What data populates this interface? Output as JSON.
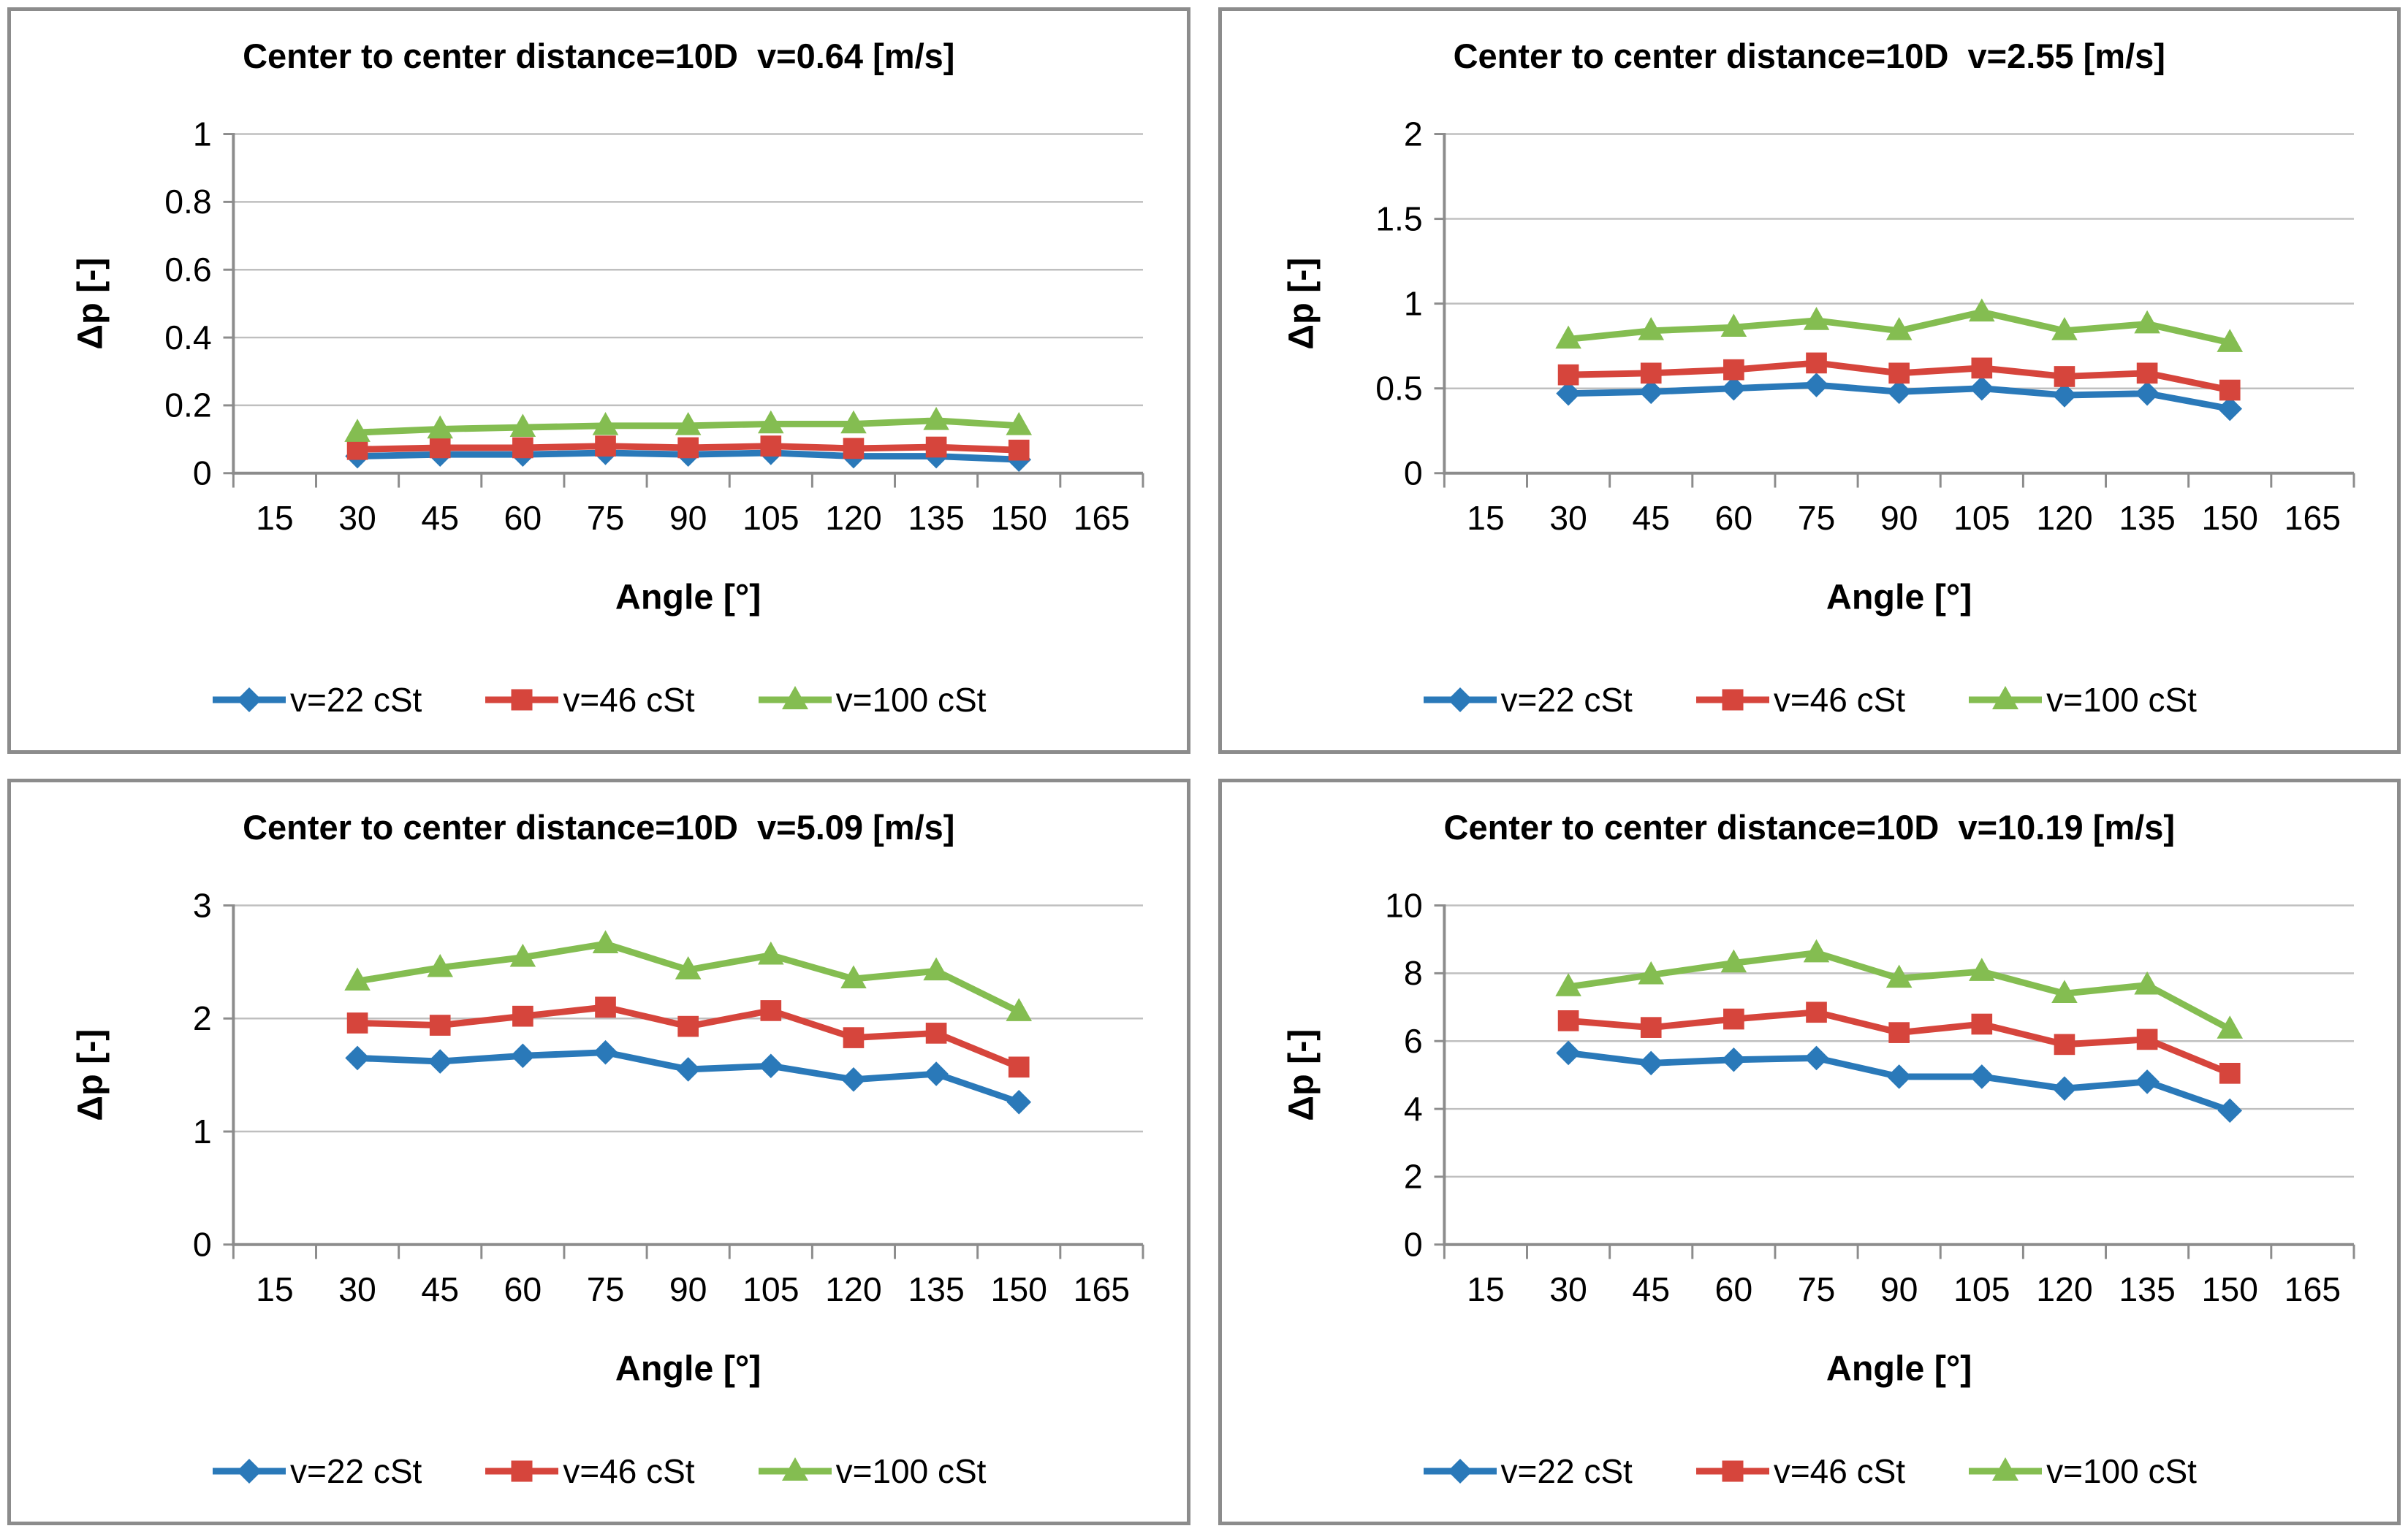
{
  "page": {
    "background": "#FFFFFF"
  },
  "colors": {
    "grid": "#BFBFBF",
    "axis": "#8C8C8C",
    "panel_border": "#8C8C8C",
    "series_blue": "#2A79B9",
    "series_red": "#D6453C",
    "series_green": "#84BD51",
    "text": "#000000"
  },
  "legend": {
    "entries": [
      {
        "label": "v=22 cSt",
        "marker": "diamond",
        "color": "#2A79B9"
      },
      {
        "label": "v=46 cSt",
        "marker": "square",
        "color": "#D6453C"
      },
      {
        "label": "v=100 cSt",
        "marker": "triangle",
        "color": "#84BD51"
      }
    ]
  },
  "chart_data": [
    {
      "type": "line",
      "title": "Center to center distance=10D  v=0.64 [m/s]",
      "xlabel": "Angle [°]",
      "ylabel": "Δp [-]",
      "x_axis": {
        "tick_labels": [
          "15",
          "30",
          "45",
          "60",
          "75",
          "90",
          "105",
          "120",
          "135",
          "150",
          "165"
        ],
        "range": [
          15,
          165
        ]
      },
      "y_axis": {
        "min": 0,
        "max": 1,
        "step": 0.2,
        "tick_labels": [
          "0",
          "0.2",
          "0.4",
          "0.6",
          "0.8",
          "1"
        ]
      },
      "grid": true,
      "legend_position": "bottom",
      "x": [
        30,
        45,
        60,
        75,
        90,
        105,
        120,
        135,
        150
      ],
      "series": [
        {
          "name": "v=22 cSt",
          "marker": "diamond",
          "color": "#2A79B9",
          "values": [
            0.05,
            0.055,
            0.055,
            0.06,
            0.055,
            0.06,
            0.05,
            0.05,
            0.04
          ]
        },
        {
          "name": "v=46 cSt",
          "marker": "square",
          "color": "#D6453C",
          "values": [
            0.07,
            0.075,
            0.075,
            0.08,
            0.075,
            0.08,
            0.073,
            0.077,
            0.068
          ]
        },
        {
          "name": "v=100 cSt",
          "marker": "triangle",
          "color": "#84BD51",
          "values": [
            0.12,
            0.13,
            0.135,
            0.14,
            0.14,
            0.145,
            0.145,
            0.155,
            0.14
          ]
        }
      ]
    },
    {
      "type": "line",
      "title": "Center to center distance=10D  v=2.55 [m/s]",
      "xlabel": "Angle [°]",
      "ylabel": "Δp [-]",
      "x_axis": {
        "tick_labels": [
          "15",
          "30",
          "45",
          "60",
          "75",
          "90",
          "105",
          "120",
          "135",
          "150",
          "165"
        ],
        "range": [
          15,
          165
        ]
      },
      "y_axis": {
        "min": 0,
        "max": 2,
        "step": 0.5,
        "tick_labels": [
          "0",
          "0.5",
          "1",
          "1.5",
          "2"
        ]
      },
      "grid": true,
      "legend_position": "bottom",
      "x": [
        30,
        45,
        60,
        75,
        90,
        105,
        120,
        135,
        150
      ],
      "series": [
        {
          "name": "v=22 cSt",
          "marker": "diamond",
          "color": "#2A79B9",
          "values": [
            0.47,
            0.48,
            0.5,
            0.52,
            0.48,
            0.5,
            0.46,
            0.47,
            0.38
          ]
        },
        {
          "name": "v=46 cSt",
          "marker": "square",
          "color": "#D6453C",
          "values": [
            0.58,
            0.59,
            0.61,
            0.65,
            0.59,
            0.62,
            0.57,
            0.59,
            0.49
          ]
        },
        {
          "name": "v=100 cSt",
          "marker": "triangle",
          "color": "#84BD51",
          "values": [
            0.79,
            0.84,
            0.86,
            0.9,
            0.84,
            0.95,
            0.84,
            0.88,
            0.77
          ]
        }
      ]
    },
    {
      "type": "line",
      "title": "Center to center distance=10D  v=5.09 [m/s]",
      "xlabel": "Angle [°]",
      "ylabel": "Δp [-]",
      "x_axis": {
        "tick_labels": [
          "15",
          "30",
          "45",
          "60",
          "75",
          "90",
          "105",
          "120",
          "135",
          "150",
          "165"
        ],
        "range": [
          15,
          165
        ]
      },
      "y_axis": {
        "min": 0,
        "max": 3,
        "step": 1,
        "tick_labels": [
          "0",
          "1",
          "2",
          "3"
        ]
      },
      "grid": true,
      "legend_position": "bottom",
      "x": [
        30,
        45,
        60,
        75,
        90,
        105,
        120,
        135,
        150
      ],
      "series": [
        {
          "name": "v=22 cSt",
          "marker": "diamond",
          "color": "#2A79B9",
          "values": [
            1.65,
            1.62,
            1.67,
            1.7,
            1.55,
            1.58,
            1.46,
            1.51,
            1.26
          ]
        },
        {
          "name": "v=46 cSt",
          "marker": "square",
          "color": "#D6453C",
          "values": [
            1.96,
            1.94,
            2.02,
            2.1,
            1.93,
            2.07,
            1.83,
            1.87,
            1.57
          ]
        },
        {
          "name": "v=100 cSt",
          "marker": "triangle",
          "color": "#84BD51",
          "values": [
            2.33,
            2.45,
            2.54,
            2.66,
            2.43,
            2.56,
            2.35,
            2.42,
            2.06
          ]
        }
      ]
    },
    {
      "type": "line",
      "title": "Center to center distance=10D  v=10.19 [m/s]",
      "xlabel": "Angle [°]",
      "ylabel": "Δp [-]",
      "x_axis": {
        "tick_labels": [
          "15",
          "30",
          "45",
          "60",
          "75",
          "90",
          "105",
          "120",
          "135",
          "150",
          "165"
        ],
        "range": [
          15,
          165
        ]
      },
      "y_axis": {
        "min": 0,
        "max": 10,
        "step": 2,
        "tick_labels": [
          "0",
          "2",
          "4",
          "6",
          "8",
          "10"
        ]
      },
      "grid": true,
      "legend_position": "bottom",
      "x": [
        30,
        45,
        60,
        75,
        90,
        105,
        120,
        135,
        150
      ],
      "series": [
        {
          "name": "v=22 cSt",
          "marker": "diamond",
          "color": "#2A79B9",
          "values": [
            5.65,
            5.35,
            5.45,
            5.5,
            4.95,
            4.95,
            4.6,
            4.8,
            3.95
          ]
        },
        {
          "name": "v=46 cSt",
          "marker": "square",
          "color": "#D6453C",
          "values": [
            6.6,
            6.4,
            6.65,
            6.85,
            6.25,
            6.5,
            5.9,
            6.05,
            5.05
          ]
        },
        {
          "name": "v=100 cSt",
          "marker": "triangle",
          "color": "#84BD51",
          "values": [
            7.6,
            7.95,
            8.3,
            8.6,
            7.85,
            8.05,
            7.4,
            7.65,
            6.35
          ]
        }
      ]
    }
  ]
}
